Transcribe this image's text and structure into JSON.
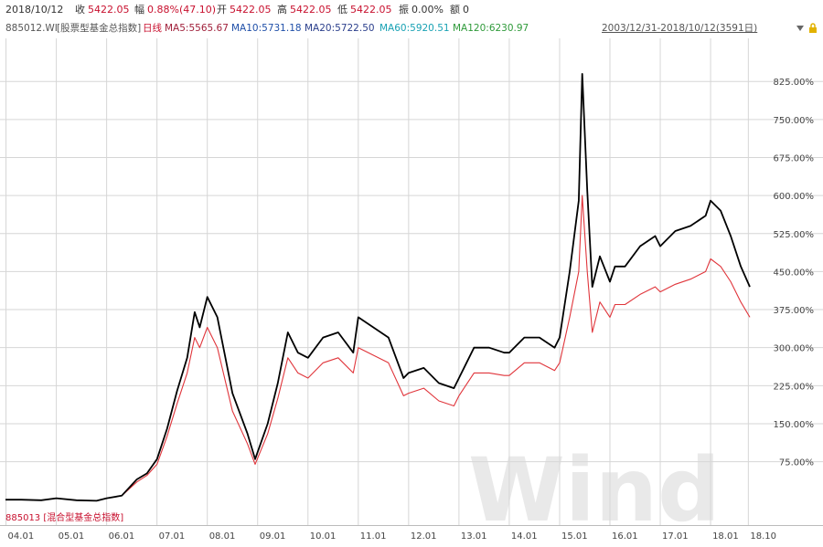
{
  "header": {
    "date": "2018/10/12",
    "close_label": "收",
    "close_value": "5422.05",
    "change_label": "幅",
    "change_value": "0.88%(47.10)",
    "open_label": "开",
    "open_value": "5422.05",
    "high_label": "高",
    "high_value": "5422.05",
    "low_label": "低",
    "low_value": "5422.05",
    "amplitude_label": "振",
    "amplitude_value": "0.00%",
    "amount_label": "额",
    "amount_value": "0"
  },
  "legend_bar": {
    "index_code": "885012.WI",
    "index_name": "[股票型基金总指数]",
    "period": "日线",
    "ma5": "MA5:5565.67",
    "ma10": "MA10:5731.18",
    "ma20": "MA20:5722.50",
    "ma60": "MA60:5920.51",
    "ma120": "MA120:6230.97",
    "date_range": "2003/12/31-2018/10/12(3591日)"
  },
  "colors": {
    "series1": "#000000",
    "series2": "#e0353b",
    "grid": "#d6d6d6",
    "ma5": "#a0203a",
    "ma10": "#1f4fa8",
    "ma20": "#2b3f8c",
    "ma60": "#19a2b4",
    "ma120": "#2f9a3a"
  },
  "chart_data": {
    "type": "line",
    "title": "",
    "xlabel": "",
    "ylabel": "",
    "ylim": [
      0,
      900
    ],
    "y_unit": "%",
    "yticks": [
      "75.00%",
      "150.00%",
      "225.00%",
      "300.00%",
      "375.00%",
      "450.00%",
      "525.00%",
      "600.00%",
      "675.00%",
      "750.00%",
      "825.00%"
    ],
    "ytick_values": [
      75,
      150,
      225,
      300,
      375,
      450,
      525,
      600,
      675,
      750,
      825
    ],
    "xticks": [
      "04.01",
      "05.01",
      "06.01",
      "07.01",
      "08.01",
      "09.01",
      "10.01",
      "11.01",
      "12.01",
      "13.01",
      "14.01",
      "15.01",
      "16.01",
      "17.01",
      "18.01",
      "18.10"
    ],
    "xtick_values": [
      2004.0,
      2005.0,
      2006.0,
      2007.0,
      2008.0,
      2009.0,
      2010.0,
      2011.0,
      2012.0,
      2013.0,
      2014.0,
      2015.0,
      2016.0,
      2017.0,
      2018.0,
      2018.75
    ],
    "lower_label": "885013 [混合型基金总指数]",
    "watermark": "Wind",
    "series": [
      {
        "name": "885012.WI [股票型基金总指数]",
        "color": "#000000",
        "x": [
          2003.99,
          2004.3,
          2004.7,
          2005.0,
          2005.4,
          2005.8,
          2006.0,
          2006.3,
          2006.6,
          2006.8,
          2007.0,
          2007.2,
          2007.4,
          2007.6,
          2007.75,
          2007.85,
          2008.0,
          2008.2,
          2008.5,
          2008.8,
          2008.95,
          2009.2,
          2009.4,
          2009.6,
          2009.8,
          2010.0,
          2010.3,
          2010.6,
          2010.9,
          2011.0,
          2011.3,
          2011.6,
          2011.9,
          2012.0,
          2012.3,
          2012.6,
          2012.9,
          2013.0,
          2013.3,
          2013.6,
          2013.9,
          2014.0,
          2014.3,
          2014.6,
          2014.9,
          2015.0,
          2015.2,
          2015.38,
          2015.45,
          2015.55,
          2015.65,
          2015.8,
          2016.0,
          2016.1,
          2016.3,
          2016.6,
          2016.9,
          2017.0,
          2017.3,
          2017.6,
          2017.9,
          2018.0,
          2018.2,
          2018.4,
          2018.6,
          2018.78
        ],
        "y": [
          0,
          0,
          -1,
          3,
          -1,
          -2,
          3,
          8,
          40,
          52,
          80,
          140,
          215,
          280,
          370,
          340,
          400,
          360,
          210,
          130,
          80,
          150,
          230,
          330,
          290,
          280,
          320,
          330,
          290,
          360,
          340,
          320,
          240,
          250,
          260,
          230,
          220,
          240,
          300,
          300,
          290,
          290,
          320,
          320,
          300,
          320,
          450,
          590,
          840,
          610,
          420,
          480,
          430,
          460,
          460,
          500,
          520,
          500,
          530,
          540,
          560,
          590,
          570,
          520,
          460,
          420
        ]
      },
      {
        "name": "885013 [混合型基金总指数]",
        "color": "#e0353b",
        "x": [
          2003.99,
          2004.3,
          2004.7,
          2005.0,
          2005.4,
          2005.8,
          2006.0,
          2006.3,
          2006.6,
          2006.8,
          2007.0,
          2007.2,
          2007.4,
          2007.6,
          2007.75,
          2007.85,
          2008.0,
          2008.2,
          2008.5,
          2008.8,
          2008.95,
          2009.2,
          2009.4,
          2009.6,
          2009.8,
          2010.0,
          2010.3,
          2010.6,
          2010.9,
          2011.0,
          2011.3,
          2011.6,
          2011.9,
          2012.0,
          2012.3,
          2012.6,
          2012.9,
          2013.0,
          2013.3,
          2013.6,
          2013.9,
          2014.0,
          2014.3,
          2014.6,
          2014.9,
          2015.0,
          2015.2,
          2015.38,
          2015.45,
          2015.55,
          2015.65,
          2015.8,
          2016.0,
          2016.1,
          2016.3,
          2016.6,
          2016.9,
          2017.0,
          2017.3,
          2017.6,
          2017.9,
          2018.0,
          2018.2,
          2018.4,
          2018.6,
          2018.78
        ],
        "y": [
          0,
          0,
          -1,
          3,
          -1,
          -2,
          3,
          8,
          35,
          48,
          70,
          125,
          190,
          250,
          320,
          300,
          340,
          300,
          175,
          110,
          70,
          130,
          200,
          280,
          250,
          240,
          270,
          280,
          250,
          300,
          285,
          270,
          205,
          210,
          220,
          195,
          185,
          205,
          250,
          250,
          245,
          245,
          270,
          270,
          255,
          270,
          360,
          450,
          600,
          450,
          330,
          390,
          360,
          385,
          385,
          405,
          420,
          410,
          425,
          435,
          450,
          475,
          460,
          430,
          390,
          360
        ]
      }
    ]
  }
}
